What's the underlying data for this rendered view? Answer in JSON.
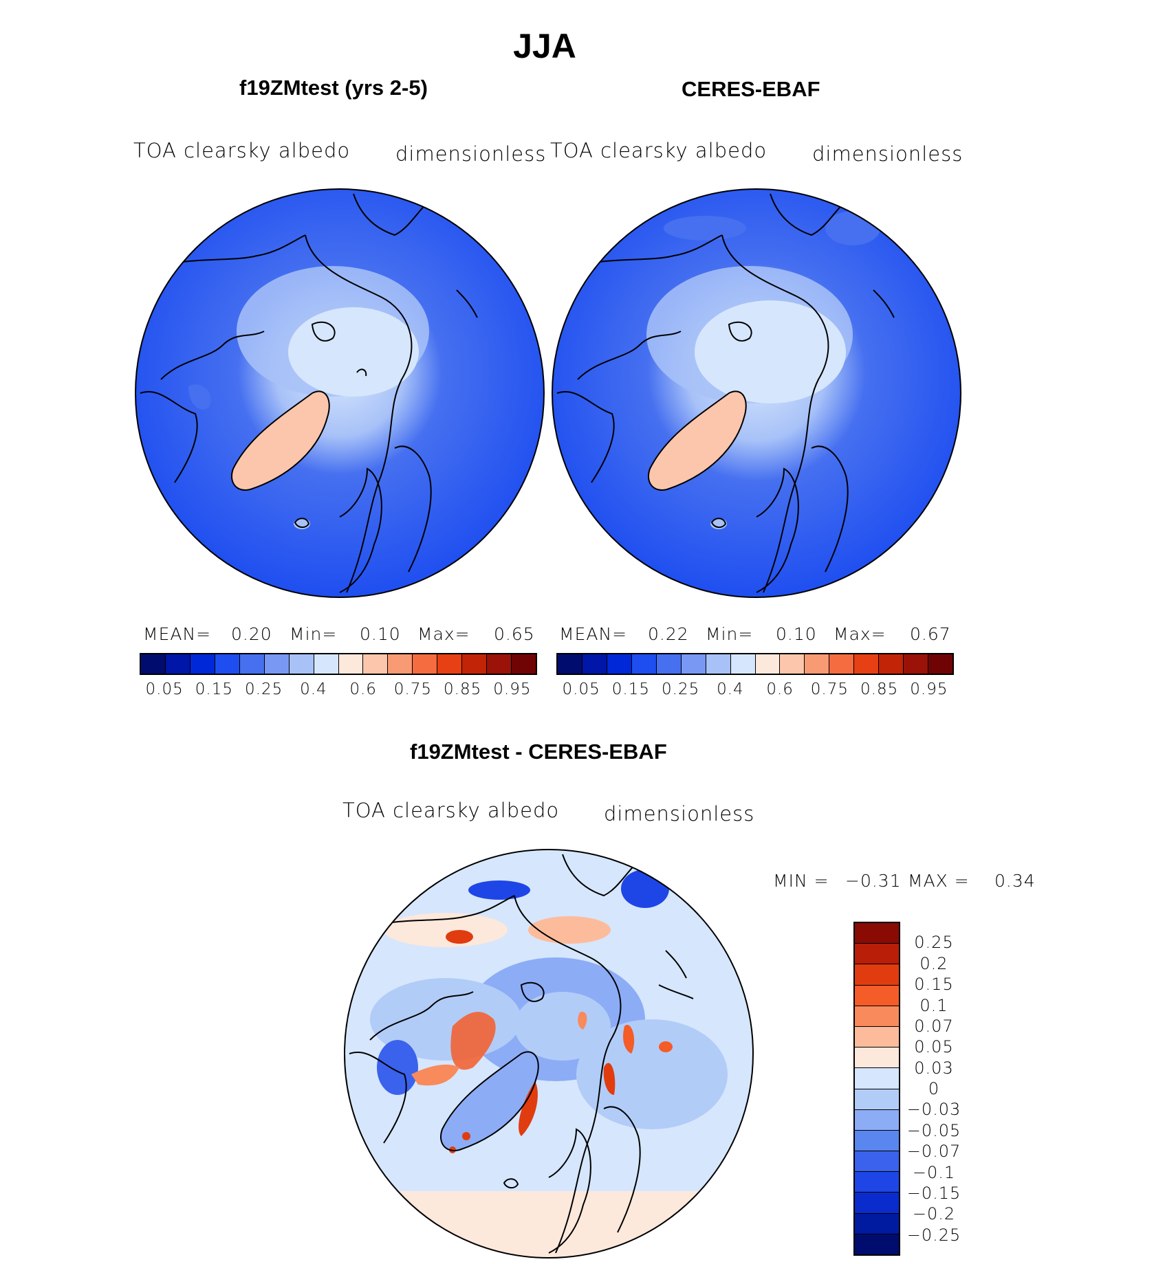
{
  "figure": {
    "title": "JJA"
  },
  "panels": [
    {
      "title": "f19ZMtest (yrs 2-5)",
      "variable": "TOA clearsky albedo",
      "units": "dimensionless",
      "mean_label": "MEAN=",
      "mean_value": "0.20",
      "min_label": "Min=",
      "min_value": "0.10",
      "max_label": "Max=",
      "max_value": "0.65"
    },
    {
      "title": "CERES-EBAF",
      "variable": "TOA clearsky albedo",
      "units": "dimensionless",
      "mean_label": "MEAN=",
      "mean_value": "0.22",
      "min_label": "Min=",
      "min_value": "0.10",
      "max_label": "Max=",
      "max_value": "0.67"
    }
  ],
  "diff": {
    "title": "f19ZMtest - CERES-EBAF",
    "variable": "TOA clearsky albedo",
    "units": "dimensionless",
    "min_label": "MIN =",
    "min_value": "−0.31",
    "max_label": "MAX =",
    "max_value": "0.34"
  },
  "colorbar_abs": {
    "ticks": [
      "0.05",
      "0.15",
      "0.25",
      "0.4",
      "0.6",
      "0.75",
      "0.85",
      "0.95"
    ],
    "colors": [
      "#000c6e",
      "#0016a8",
      "#0028d8",
      "#1e4ef0",
      "#4670f0",
      "#7898f4",
      "#a8c2f8",
      "#d6e6fc",
      "#fde8dc",
      "#fcc6ac",
      "#f89a74",
      "#f46c40",
      "#e64014",
      "#c22408",
      "#9a1208",
      "#700404"
    ]
  },
  "colorbar_diff": {
    "ticks": [
      "0.25",
      "0.2",
      "0.15",
      "0.1",
      "0.07",
      "0.05",
      "0.03",
      "0",
      "−0.03",
      "−0.05",
      "−0.07",
      "−0.1",
      "−0.15",
      "−0.2",
      "−0.25"
    ],
    "colors": [
      "#8a0a04",
      "#b81e08",
      "#e03c10",
      "#f45c28",
      "#f88a5c",
      "#fcbc9c",
      "#fde8dc",
      "#d6e6fc",
      "#b2ccf8",
      "#8cacf6",
      "#5a86f0",
      "#3a62ec",
      "#1e46e6",
      "#0a2ccc",
      "#001aa0",
      "#000c6e"
    ]
  }
}
